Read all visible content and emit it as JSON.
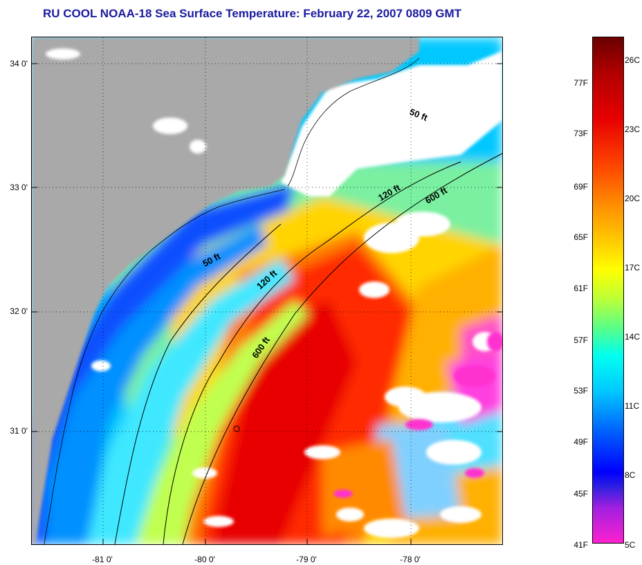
{
  "title": "RU COOL  NOAA-18  Sea Surface Temperature:  February 22, 2007 0809 GMT",
  "map": {
    "lat_labels": [
      "34 0'",
      "33 0'",
      "32 0'",
      "31 0'"
    ],
    "lon_labels": [
      "-81 0'",
      "-80 0'",
      "-79 0'",
      "-78 0'"
    ],
    "isobath_labels": [
      "50 ft",
      "120 ft",
      "600 ft",
      "50 ft",
      "120 ft",
      "600 ft"
    ],
    "colors": {
      "land": "#a9a9a9",
      "cloud": "#ffffff",
      "coastline": "#000000"
    }
  },
  "colorbar": {
    "fahrenheit_labels": [
      "77F",
      "73F",
      "69F",
      "65F",
      "61F",
      "57F",
      "53F",
      "49F",
      "45F",
      "41F"
    ],
    "celsius_labels": [
      "26C",
      "23C",
      "20C",
      "17C",
      "14C",
      "11C",
      "8C",
      "5C"
    ]
  }
}
